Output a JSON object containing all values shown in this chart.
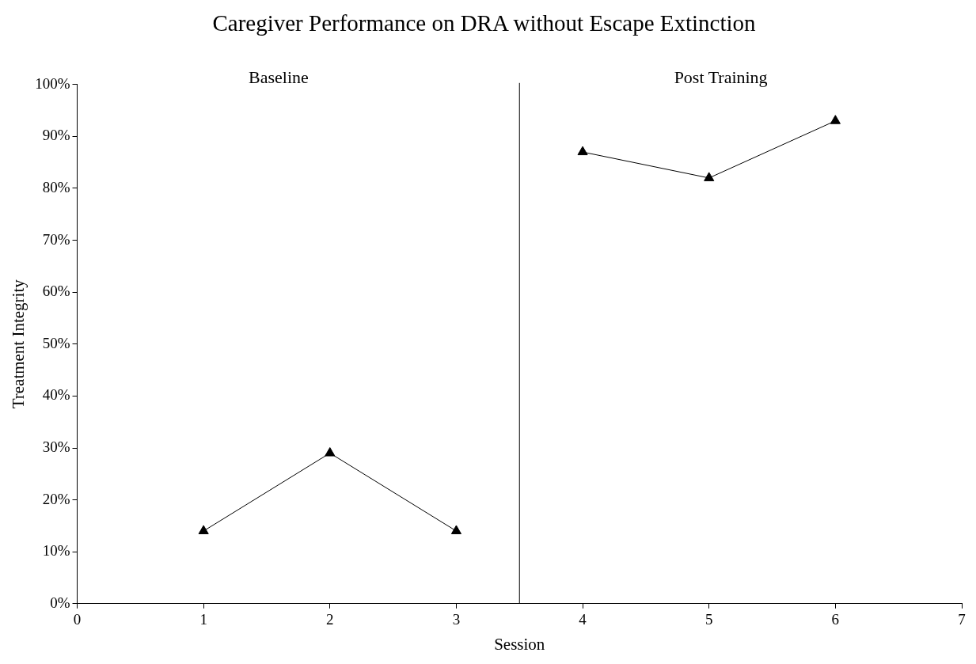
{
  "chart_data": {
    "type": "line",
    "title": "Caregiver Performance on DRA without Escape Extinction",
    "xlabel": "Session",
    "ylabel": "Treatment Integrity",
    "series": [
      {
        "color": "#000000",
        "x": [
          1,
          2,
          3
        ],
        "values": [
          14,
          29,
          14
        ]
      },
      {
        "color": "#000000",
        "x": [
          4,
          5,
          6
        ],
        "values": [
          87,
          82,
          93
        ]
      }
    ],
    "xlim": [
      0,
      7
    ],
    "xticks": [
      0,
      1,
      2,
      3,
      4,
      5,
      6,
      7
    ],
    "ylim": [
      0,
      100
    ],
    "yticks": [
      {
        "value": 0,
        "label": "0%"
      },
      {
        "value": 10,
        "label": "10%"
      },
      {
        "value": 20,
        "label": "20%"
      },
      {
        "value": 30,
        "label": "30%"
      },
      {
        "value": 40,
        "label": "40%"
      },
      {
        "value": 50,
        "label": "50%"
      },
      {
        "value": 60,
        "label": "60%"
      },
      {
        "value": 70,
        "label": "70%"
      },
      {
        "value": 80,
        "label": "80%"
      },
      {
        "value": 90,
        "label": "90%"
      },
      {
        "value": 100,
        "label": "100%"
      }
    ],
    "ref_lines": [
      {
        "axis": "x",
        "value": 3.5,
        "color": "#000000"
      }
    ],
    "annotations": [
      "Baseline",
      "Post Training"
    ],
    "grid": false,
    "legend": false,
    "marker": "triangle",
    "line_style": "solid"
  }
}
